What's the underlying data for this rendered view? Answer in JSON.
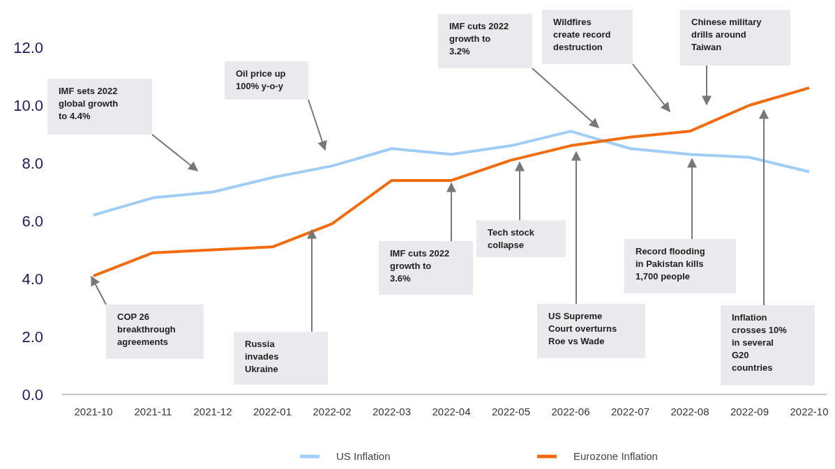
{
  "chart_data": {
    "type": "line",
    "categories": [
      "2021-10",
      "2021-11",
      "2021-12",
      "2022-01",
      "2022-02",
      "2022-03",
      "2022-04",
      "2022-05",
      "2022-06",
      "2022-07",
      "2022-08",
      "2022-09",
      "2022-10"
    ],
    "series": [
      {
        "name": "US Inflation",
        "color": "#9fcdf5",
        "values": [
          6.2,
          6.8,
          7.0,
          7.5,
          7.9,
          8.5,
          8.3,
          8.6,
          9.1,
          8.5,
          8.3,
          8.2,
          7.7
        ]
      },
      {
        "name": "Eurozone Inflation",
        "color": "#f26b0f",
        "values": [
          4.1,
          4.9,
          5.0,
          5.1,
          5.9,
          7.4,
          7.4,
          8.1,
          8.6,
          8.9,
          9.1,
          10.0,
          10.6
        ]
      }
    ],
    "ylim": [
      0,
      12
    ],
    "yticks": [
      {
        "value": 0,
        "label": "0.0"
      },
      {
        "value": 2,
        "label": "2.0"
      },
      {
        "value": 4,
        "label": "4.0"
      },
      {
        "value": 6,
        "label": "6.0"
      },
      {
        "value": 8,
        "label": "8.0"
      },
      {
        "value": 10,
        "label": "10.0"
      },
      {
        "value": 12,
        "label": "12.0"
      }
    ],
    "grid": false,
    "legend": "bottom",
    "marker": "none",
    "line_style": "solid",
    "annotations": [
      "IMF sets 2022 global growth to 4.4%",
      "Oil price up 100% y-o-y",
      "COP 26 breakthrough agreements",
      "Russia invades Ukraine",
      {
        "text": "IMF cuts 2022 growth to 3.6%",
        "x": "2022-04",
        "y": 7.4
      },
      "Tech stock collapse",
      "IMF cuts 2022 growth to 3.2%",
      "US Supreme Court overturns Roe vs Wade",
      "Wildfires create record destruction",
      "Chinese military drills around Taiwan",
      "Record flooding in Pakistan kills 1,700 people",
      "Inflation crosses 10% in several G20 countries"
    ]
  }
}
